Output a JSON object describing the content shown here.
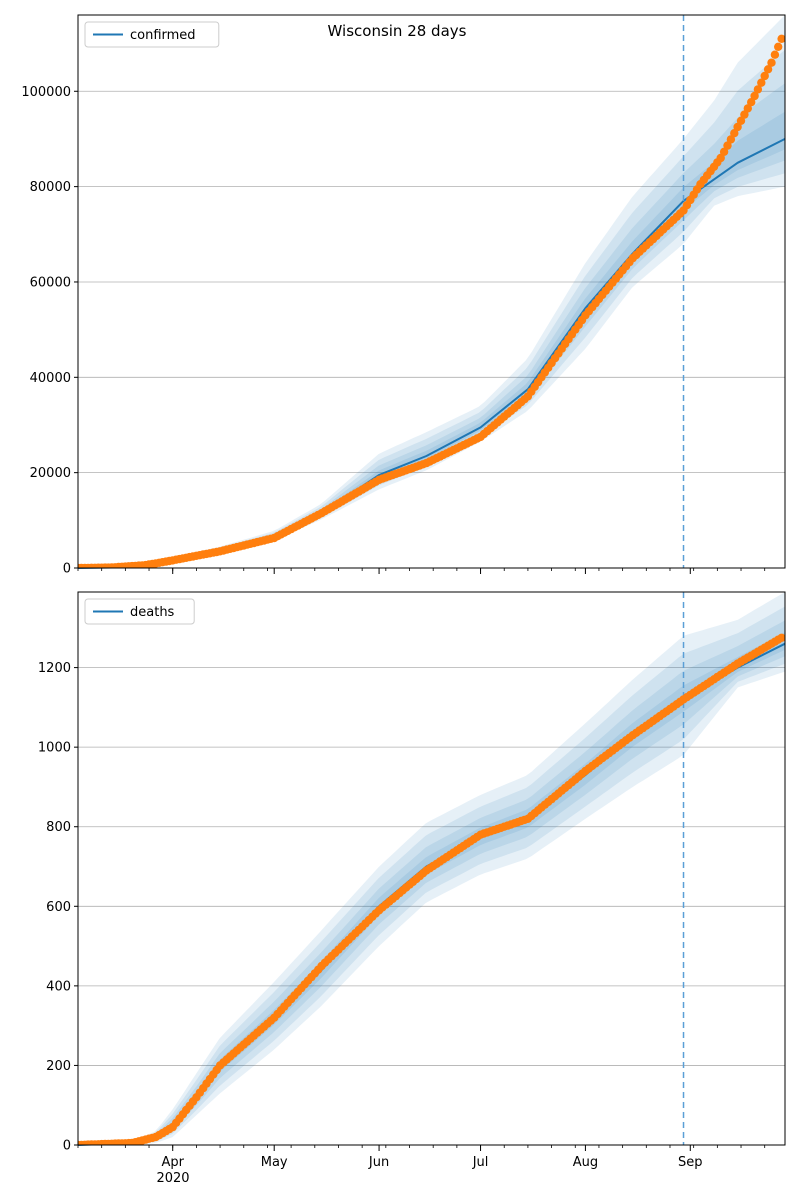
{
  "figure": {
    "title": "Wisconsin 28 days",
    "year_label": "2020"
  },
  "colors": {
    "line": "#1f77b4",
    "band": "#1f77b4",
    "observed": "#ff7f0e",
    "grid": "#b0b0b0",
    "vline": "#5b9fd6"
  },
  "chart_data": [
    {
      "type": "line",
      "name": "confirmed",
      "legend": "confirmed",
      "legend_position": "top-left",
      "grid": "y",
      "x_axis": {
        "type": "date",
        "range": [
          "2020-03-04",
          "2020-09-29"
        ],
        "tick_labels": [
          {
            "date": "2020-04-01",
            "label": "Apr"
          },
          {
            "date": "2020-05-01",
            "label": "May"
          },
          {
            "date": "2020-06-01",
            "label": "Jun"
          },
          {
            "date": "2020-07-01",
            "label": "Jul"
          },
          {
            "date": "2020-08-01",
            "label": "Aug"
          },
          {
            "date": "2020-09-01",
            "label": "Sep"
          }
        ]
      },
      "ylim": [
        0,
        116000
      ],
      "yticks": [
        0,
        20000,
        40000,
        60000,
        80000,
        100000
      ],
      "forecast_start": "2020-08-30",
      "model": [
        {
          "date": "2020-03-04",
          "y": 0
        },
        {
          "date": "2020-03-14",
          "y": 100
        },
        {
          "date": "2020-03-24",
          "y": 700
        },
        {
          "date": "2020-04-01",
          "y": 1700
        },
        {
          "date": "2020-04-15",
          "y": 3600
        },
        {
          "date": "2020-05-01",
          "y": 6500
        },
        {
          "date": "2020-05-15",
          "y": 11500
        },
        {
          "date": "2020-06-01",
          "y": 19500
        },
        {
          "date": "2020-06-15",
          "y": 23500
        },
        {
          "date": "2020-07-01",
          "y": 29500
        },
        {
          "date": "2020-07-15",
          "y": 37500
        },
        {
          "date": "2020-08-01",
          "y": 54500
        },
        {
          "date": "2020-08-15",
          "y": 66000
        },
        {
          "date": "2020-08-30",
          "y": 77000
        },
        {
          "date": "2020-09-15",
          "y": 85000
        },
        {
          "date": "2020-09-29",
          "y": 90000
        }
      ],
      "bands": [
        {
          "date": "2020-03-04",
          "low": 0,
          "high": 0
        },
        {
          "date": "2020-03-24",
          "low": 500,
          "high": 900
        },
        {
          "date": "2020-04-15",
          "low": 3000,
          "high": 4500
        },
        {
          "date": "2020-05-01",
          "low": 5800,
          "high": 7800
        },
        {
          "date": "2020-05-15",
          "low": 10200,
          "high": 13500
        },
        {
          "date": "2020-06-01",
          "low": 16500,
          "high": 24000
        },
        {
          "date": "2020-06-15",
          "low": 20500,
          "high": 28500
        },
        {
          "date": "2020-07-01",
          "low": 26500,
          "high": 34000
        },
        {
          "date": "2020-07-15",
          "low": 33000,
          "high": 44000
        },
        {
          "date": "2020-08-01",
          "low": 46000,
          "high": 64000
        },
        {
          "date": "2020-08-15",
          "low": 59000,
          "high": 78000
        },
        {
          "date": "2020-08-30",
          "low": 68000,
          "high": 90000
        },
        {
          "date": "2020-09-08",
          "low": 76000,
          "high": 98000
        },
        {
          "date": "2020-09-15",
          "low": 78000,
          "high": 106000
        },
        {
          "date": "2020-09-29",
          "low": 80000,
          "high": 116000
        }
      ],
      "observed": [
        {
          "date": "2020-03-04",
          "y": 0
        },
        {
          "date": "2020-03-14",
          "y": 100
        },
        {
          "date": "2020-03-24",
          "y": 600
        },
        {
          "date": "2020-04-01",
          "y": 1600
        },
        {
          "date": "2020-04-15",
          "y": 3500
        },
        {
          "date": "2020-05-01",
          "y": 6300
        },
        {
          "date": "2020-05-15",
          "y": 11500
        },
        {
          "date": "2020-06-01",
          "y": 18500
        },
        {
          "date": "2020-06-15",
          "y": 22000
        },
        {
          "date": "2020-07-01",
          "y": 27500
        },
        {
          "date": "2020-07-15",
          "y": 36000
        },
        {
          "date": "2020-08-01",
          "y": 53000
        },
        {
          "date": "2020-08-15",
          "y": 65000
        },
        {
          "date": "2020-08-30",
          "y": 75000
        },
        {
          "date": "2020-09-04",
          "y": 80500
        },
        {
          "date": "2020-09-10",
          "y": 86000
        },
        {
          "date": "2020-09-15",
          "y": 92500
        },
        {
          "date": "2020-09-20",
          "y": 99000
        },
        {
          "date": "2020-09-25",
          "y": 106000
        },
        {
          "date": "2020-09-28",
          "y": 111000
        }
      ]
    },
    {
      "type": "line",
      "name": "deaths",
      "legend": "deaths",
      "legend_position": "top-left",
      "grid": "y",
      "x_axis": {
        "type": "date",
        "range": [
          "2020-03-04",
          "2020-09-29"
        ],
        "tick_labels": [
          {
            "date": "2020-04-01",
            "label": "Apr"
          },
          {
            "date": "2020-05-01",
            "label": "May"
          },
          {
            "date": "2020-06-01",
            "label": "Jun"
          },
          {
            "date": "2020-07-01",
            "label": "Jul"
          },
          {
            "date": "2020-08-01",
            "label": "Aug"
          },
          {
            "date": "2020-09-01",
            "label": "Sep"
          }
        ]
      },
      "ylim": [
        0,
        1390
      ],
      "yticks": [
        0,
        200,
        400,
        600,
        800,
        1000,
        1200
      ],
      "forecast_start": "2020-08-30",
      "model": [
        {
          "date": "2020-03-04",
          "y": 0
        },
        {
          "date": "2020-03-20",
          "y": 5
        },
        {
          "date": "2020-03-27",
          "y": 20
        },
        {
          "date": "2020-04-01",
          "y": 50
        },
        {
          "date": "2020-04-08",
          "y": 120
        },
        {
          "date": "2020-04-15",
          "y": 200
        },
        {
          "date": "2020-05-01",
          "y": 320
        },
        {
          "date": "2020-05-15",
          "y": 440
        },
        {
          "date": "2020-06-01",
          "y": 600
        },
        {
          "date": "2020-06-15",
          "y": 700
        },
        {
          "date": "2020-07-01",
          "y": 775
        },
        {
          "date": "2020-07-15",
          "y": 820
        },
        {
          "date": "2020-08-01",
          "y": 930
        },
        {
          "date": "2020-08-15",
          "y": 1030
        },
        {
          "date": "2020-08-30",
          "y": 1120
        },
        {
          "date": "2020-09-15",
          "y": 1200
        },
        {
          "date": "2020-09-29",
          "y": 1260
        }
      ],
      "bands": [
        {
          "date": "2020-03-04",
          "low": 0,
          "high": 0
        },
        {
          "date": "2020-03-20",
          "low": 0,
          "high": 10
        },
        {
          "date": "2020-03-27",
          "low": 5,
          "high": 35
        },
        {
          "date": "2020-04-01",
          "low": 20,
          "high": 90
        },
        {
          "date": "2020-04-15",
          "low": 130,
          "high": 270
        },
        {
          "date": "2020-05-01",
          "low": 240,
          "high": 410
        },
        {
          "date": "2020-05-15",
          "low": 350,
          "high": 540
        },
        {
          "date": "2020-06-01",
          "low": 500,
          "high": 700
        },
        {
          "date": "2020-06-15",
          "low": 610,
          "high": 810
        },
        {
          "date": "2020-07-01",
          "low": 680,
          "high": 880
        },
        {
          "date": "2020-07-15",
          "low": 720,
          "high": 930
        },
        {
          "date": "2020-08-01",
          "low": 820,
          "high": 1060
        },
        {
          "date": "2020-08-15",
          "low": 900,
          "high": 1170
        },
        {
          "date": "2020-08-30",
          "low": 980,
          "high": 1280
        },
        {
          "date": "2020-09-15",
          "low": 1150,
          "high": 1320
        },
        {
          "date": "2020-09-29",
          "low": 1190,
          "high": 1390
        }
      ],
      "observed": [
        {
          "date": "2020-03-04",
          "y": 0
        },
        {
          "date": "2020-03-20",
          "y": 5
        },
        {
          "date": "2020-03-27",
          "y": 20
        },
        {
          "date": "2020-04-01",
          "y": 45
        },
        {
          "date": "2020-04-08",
          "y": 120
        },
        {
          "date": "2020-04-15",
          "y": 200
        },
        {
          "date": "2020-05-01",
          "y": 320
        },
        {
          "date": "2020-05-15",
          "y": 450
        },
        {
          "date": "2020-06-01",
          "y": 590
        },
        {
          "date": "2020-06-15",
          "y": 690
        },
        {
          "date": "2020-07-01",
          "y": 780
        },
        {
          "date": "2020-07-15",
          "y": 820
        },
        {
          "date": "2020-08-01",
          "y": 940
        },
        {
          "date": "2020-08-15",
          "y": 1030
        },
        {
          "date": "2020-08-30",
          "y": 1120
        },
        {
          "date": "2020-09-15",
          "y": 1210
        },
        {
          "date": "2020-09-28",
          "y": 1275
        }
      ]
    }
  ]
}
